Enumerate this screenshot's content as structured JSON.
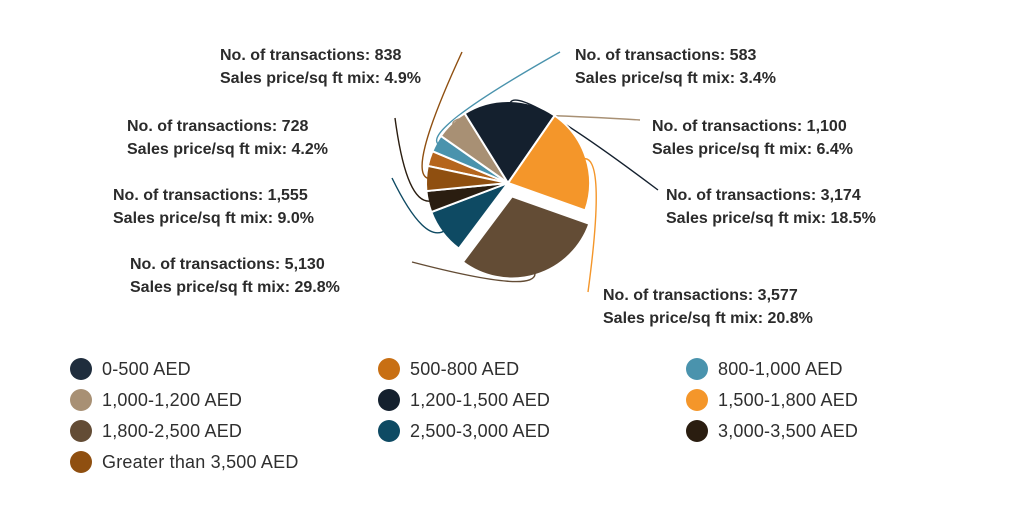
{
  "chart_data": {
    "type": "pie",
    "title": "",
    "slices": [
      {
        "name": "500-800 AED",
        "transactions": "",
        "mix": "",
        "value": 3.0,
        "color": "#b5651d"
      },
      {
        "name": "800-1,000 AED",
        "transactions": "583",
        "mix": "3.4%",
        "value": 3.4,
        "color": "#4a93ad"
      },
      {
        "name": "1,000-1,200 AED",
        "transactions": "1,100",
        "mix": "6.4%",
        "value": 6.4,
        "color": "#a89074"
      },
      {
        "name": "1,200-1,500 AED",
        "transactions": "3,174",
        "mix": "18.5%",
        "value": 18.5,
        "color": "#14202e"
      },
      {
        "name": "1,500-1,800 AED",
        "transactions": "3,577",
        "mix": "20.8%",
        "value": 20.8,
        "color": "#f4962a"
      },
      {
        "name": "1,800-2,500 AED",
        "transactions": "5,130",
        "mix": "29.8%",
        "value": 29.8,
        "color": "#634c35"
      },
      {
        "name": "2,500-3,000 AED",
        "transactions": "1,555",
        "mix": "9.0%",
        "value": 9.0,
        "color": "#0e4a63"
      },
      {
        "name": "3,000-3,500 AED",
        "transactions": "728",
        "mix": "4.2%",
        "value": 4.2,
        "color": "#2a1d10"
      },
      {
        "name": "Greater than 3,500 AED",
        "transactions": "838",
        "mix": "4.9%",
        "value": 4.9,
        "color": "#8f4f10"
      }
    ],
    "label_prefix_transactions": "No. of transactions: ",
    "label_prefix_mix": "Sales price/sq ft mix: ",
    "legend_position": "bottom",
    "legend": [
      {
        "label": "0-500 AED",
        "color": "#1f2d3d"
      },
      {
        "label": "500-800 AED",
        "color": "#c86f13"
      },
      {
        "label": "800-1,000 AED",
        "color": "#4a93ad"
      },
      {
        "label": "1,000-1,200 AED",
        "color": "#a89074"
      },
      {
        "label": "1,200-1,500 AED",
        "color": "#14202e"
      },
      {
        "label": "1,500-1,800 AED",
        "color": "#f4962a"
      },
      {
        "label": "1,800-2,500 AED",
        "color": "#634c35"
      },
      {
        "label": "2,500-3,000 AED",
        "color": "#0e4a63"
      },
      {
        "label": "3,000-3,500 AED",
        "color": "#2a1d10"
      },
      {
        "label": "Greater than 3,500 AED",
        "color": "#8f4f10"
      }
    ]
  }
}
